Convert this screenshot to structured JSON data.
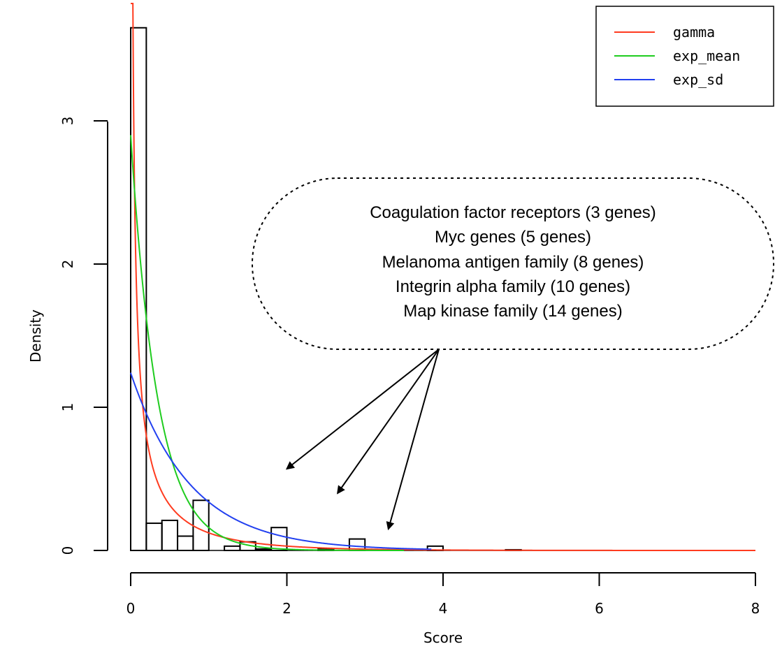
{
  "chart_data": {
    "type": "bar",
    "xlabel": "Score",
    "ylabel": "Density",
    "xlim": [
      0,
      8
    ],
    "ylim": [
      0,
      3.8
    ],
    "x_ticks": [
      "0",
      "2",
      "4",
      "6",
      "8"
    ],
    "y_ticks": [
      "0",
      "1",
      "2",
      "3"
    ],
    "histogram": {
      "bin_width": 0.2,
      "bins": [
        {
          "start": 0.0,
          "density": 3.65
        },
        {
          "start": 0.2,
          "density": 0.19
        },
        {
          "start": 0.4,
          "density": 0.21
        },
        {
          "start": 0.6,
          "density": 0.1
        },
        {
          "start": 0.8,
          "density": 0.35
        },
        {
          "start": 1.2,
          "density": 0.03
        },
        {
          "start": 1.4,
          "density": 0.06
        },
        {
          "start": 1.6,
          "density": 0.01
        },
        {
          "start": 1.8,
          "density": 0.16
        },
        {
          "start": 2.4,
          "density": 0.01
        },
        {
          "start": 2.8,
          "density": 0.08
        },
        {
          "start": 3.8,
          "density": 0.03
        },
        {
          "start": 4.8,
          "density": 0.005
        }
      ]
    },
    "series": [
      {
        "name": "gamma",
        "color": "#ff3b1f",
        "model": "gamma",
        "shape": 0.28,
        "rate": 0.9,
        "x_max": 8.0
      },
      {
        "name": "exp_mean",
        "color": "#1fcc1f",
        "model": "exponential",
        "amplitude": 2.9,
        "rate": 2.9,
        "x_max": 3.5
      },
      {
        "name": "exp_sd",
        "color": "#2240f0",
        "model": "exponential",
        "amplitude": 1.24,
        "rate": 1.3,
        "x_max": 3.85
      }
    ],
    "legend_placement": "top-right",
    "annotation": {
      "lines": [
        "Coagulation factor receptors  (3 genes)",
        "Myc genes (5 genes)",
        "Melanoma antigen family (8 genes)",
        "Integrin alpha family (10 genes)",
        "Map kinase family (14 genes)"
      ],
      "arrow_targets": [
        {
          "x": 2.0,
          "y": 0.57
        },
        {
          "x": 2.65,
          "y": 0.4
        },
        {
          "x": 3.3,
          "y": 0.15
        }
      ]
    }
  }
}
